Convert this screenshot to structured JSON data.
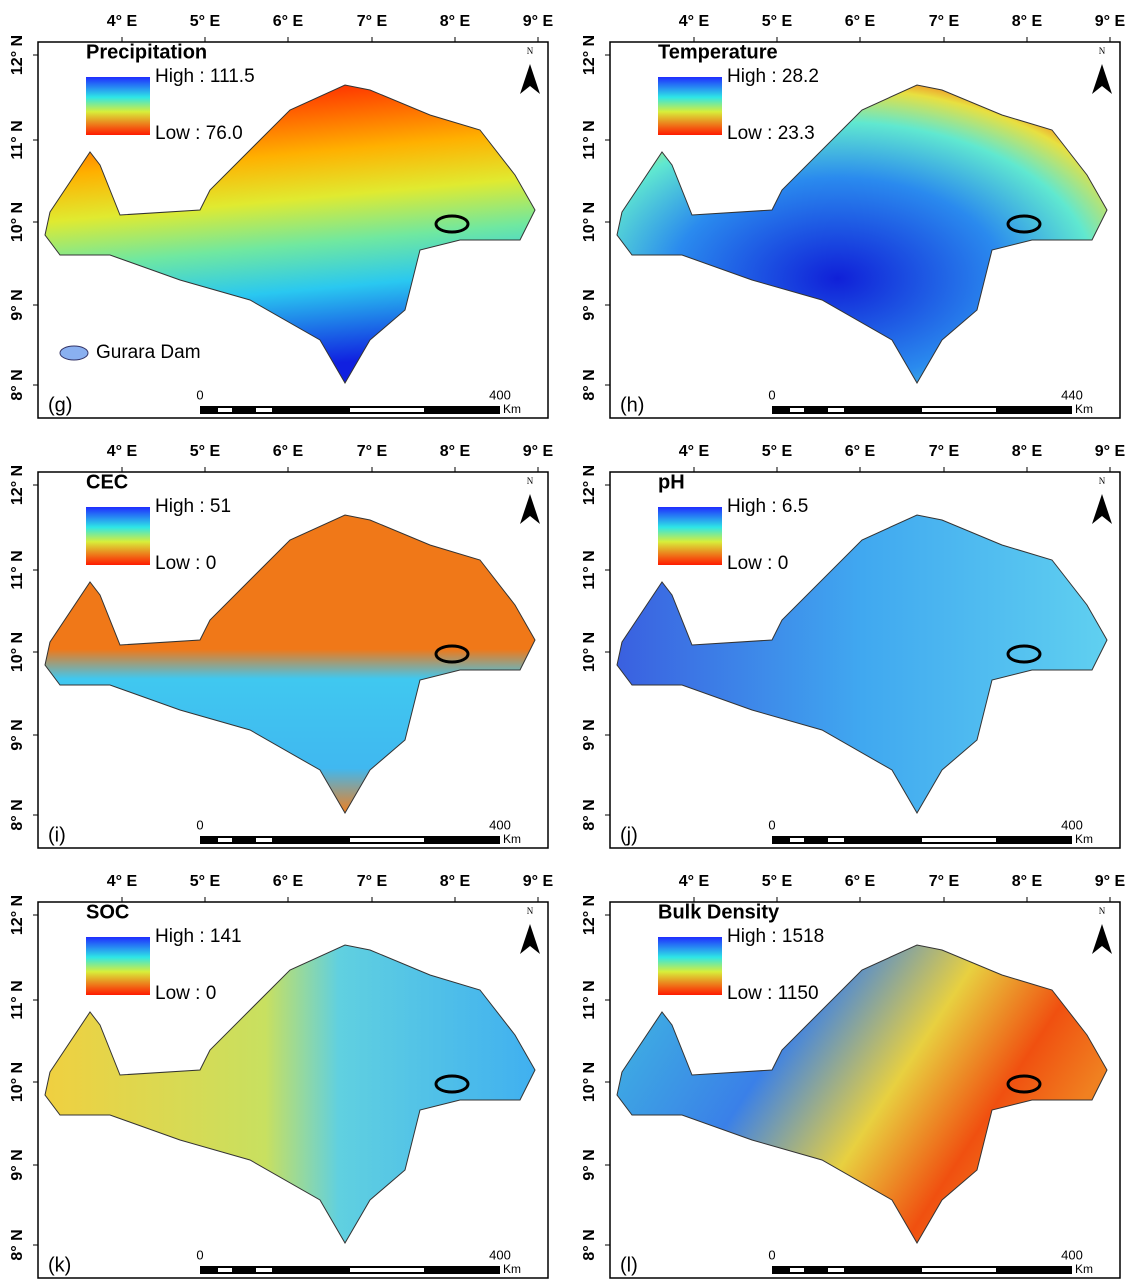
{
  "lon_labels": [
    "4° E",
    "5° E",
    "6° E",
    "7° E",
    "8° E",
    "9° E"
  ],
  "lat_labels": [
    "12° N",
    "11° N",
    "10° N",
    "9° N",
    "8° N"
  ],
  "north": "N",
  "scale_unit": "Km",
  "dam_legend": "Gurara Dam",
  "panels": [
    {
      "title": "Precipitation",
      "high": "High : 111.5",
      "low": "Low : 76.0",
      "label": "(g)",
      "scale_start": "0",
      "scale_end": "400"
    },
    {
      "title": "Temperature",
      "high": "High : 28.2",
      "low": "Low : 23.3",
      "label": "(h)",
      "scale_start": "0",
      "scale_end": "440"
    },
    {
      "title": "CEC",
      "high": "High : 51",
      "low": "Low : 0",
      "label": "(i)",
      "scale_start": "0",
      "scale_end": "400"
    },
    {
      "title": "pH",
      "high": "High : 6.5",
      "low": "Low : 0",
      "label": "(j)",
      "scale_start": "0",
      "scale_end": "400"
    },
    {
      "title": "SOC",
      "high": "High : 141",
      "low": "Low : 0",
      "label": "(k)",
      "scale_start": "0",
      "scale_end": "400"
    },
    {
      "title": "Bulk Density",
      "high": "High : 1518",
      "low": "Low : 1150",
      "label": "(l)",
      "scale_start": "0",
      "scale_end": "400"
    }
  ]
}
